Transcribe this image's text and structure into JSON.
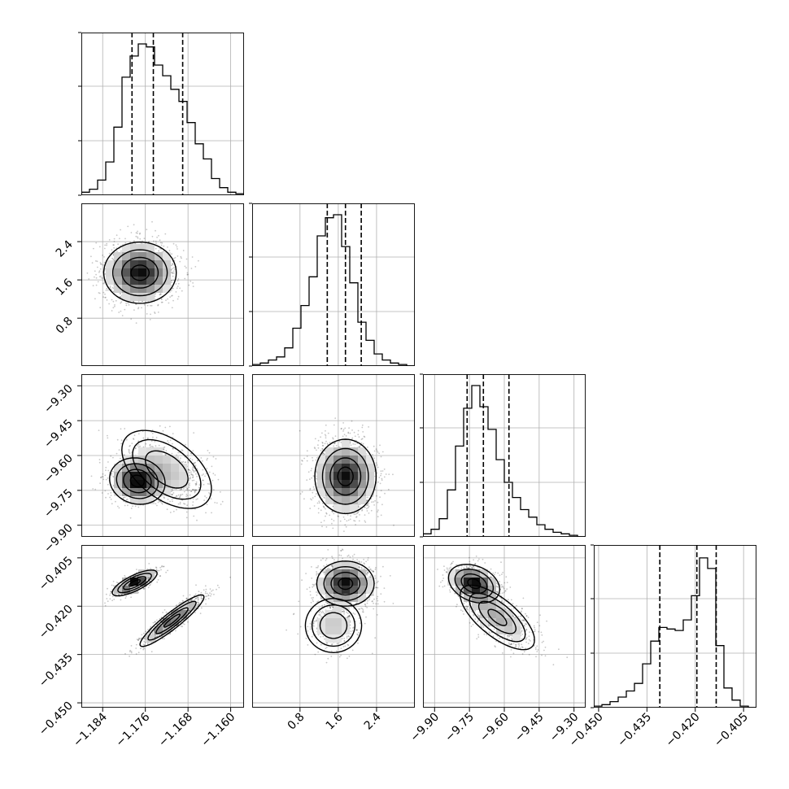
{
  "chart_data": {
    "type": "corner",
    "parameters": [
      {
        "ticks": [
          -1.184,
          -1.176,
          -1.168,
          -1.16
        ],
        "tick_labels": [
          "−1.184",
          "−1.176",
          "−1.168",
          "−1.160"
        ],
        "range": [
          -1.188,
          -1.1575
        ],
        "quantiles": [
          -1.1785,
          -1.1745,
          -1.169
        ]
      },
      {
        "ticks": [
          0.8,
          1.6,
          2.4
        ],
        "tick_labels": [
          "0.8",
          "1.6",
          "2.4"
        ],
        "range": [
          -0.2,
          3.2
        ],
        "quantiles": [
          1.37,
          1.75,
          2.08
        ]
      },
      {
        "ticks": [
          -9.9,
          -9.75,
          -9.6,
          -9.45,
          -9.3
        ],
        "tick_labels": [
          "−9.90",
          "−9.75",
          "−9.60",
          "−9.45",
          "−9.30"
        ],
        "range": [
          -9.95,
          -9.25
        ],
        "quantiles": [
          -9.76,
          -9.69,
          -9.58
        ]
      },
      {
        "ticks": [
          -0.45,
          -0.435,
          -0.42,
          -0.405
        ],
        "tick_labels": [
          "−0.450",
          "−0.435",
          "−0.420",
          "−0.405"
        ],
        "range": [
          -0.4515,
          -0.401
        ],
        "quantiles": [
          -0.431,
          -0.4195,
          -0.4135
        ]
      }
    ],
    "histograms": [
      [
        0.02,
        0.04,
        0.1,
        0.22,
        0.45,
        0.78,
        0.92,
        1.0,
        0.98,
        0.86,
        0.79,
        0.7,
        0.62,
        0.48,
        0.34,
        0.24,
        0.11,
        0.05,
        0.02,
        0.01
      ],
      [
        0.01,
        0.02,
        0.04,
        0.06,
        0.12,
        0.25,
        0.4,
        0.59,
        0.86,
        0.98,
        1.0,
        0.79,
        0.55,
        0.29,
        0.17,
        0.08,
        0.04,
        0.02,
        0.01,
        0.0
      ],
      [
        0.02,
        0.05,
        0.12,
        0.31,
        0.6,
        0.85,
        1.0,
        0.86,
        0.71,
        0.51,
        0.36,
        0.26,
        0.18,
        0.13,
        0.08,
        0.05,
        0.03,
        0.02,
        0.01,
        0.0
      ],
      [
        0.01,
        0.02,
        0.04,
        0.07,
        0.11,
        0.16,
        0.29,
        0.44,
        0.53,
        0.52,
        0.51,
        0.58,
        0.74,
        0.99,
        0.92,
        0.41,
        0.13,
        0.05,
        0.01,
        0.0
      ]
    ],
    "samples": [
      {
        "row": 1,
        "col": 0,
        "clusters": [
          {
            "mx": -1.177,
            "my": 1.75,
            "sx": 0.0034,
            "sy": 0.32,
            "rho": 0.0,
            "w": 1.0
          }
        ]
      },
      {
        "row": 2,
        "col": 0,
        "clusters": [
          {
            "mx": -1.1775,
            "my": -9.71,
            "sx": 0.0026,
            "sy": 0.05,
            "rho": -0.1,
            "w": 0.6
          },
          {
            "mx": -1.172,
            "my": -9.66,
            "sx": 0.004,
            "sy": 0.08,
            "rho": -0.5,
            "w": 0.4
          }
        ]
      },
      {
        "row": 2,
        "col": 1,
        "clusters": [
          {
            "mx": 1.75,
            "my": -9.69,
            "sx": 0.32,
            "sy": 0.08,
            "rho": 0.0,
            "w": 1.0
          }
        ]
      },
      {
        "row": 3,
        "col": 0,
        "clusters": [
          {
            "mx": -1.178,
            "my": -0.4128,
            "sx": 0.0021,
            "sy": 0.002,
            "rho": 0.75,
            "w": 0.45
          },
          {
            "mx": -1.171,
            "my": -0.4245,
            "sx": 0.003,
            "sy": 0.004,
            "rho": 0.92,
            "w": 0.55
          }
        ]
      },
      {
        "row": 3,
        "col": 1,
        "clusters": [
          {
            "mx": 1.75,
            "my": -0.413,
            "sx": 0.3,
            "sy": 0.0035,
            "rho": 0.0,
            "w": 0.75
          },
          {
            "mx": 1.5,
            "my": -0.426,
            "sx": 0.28,
            "sy": 0.004,
            "rho": 0.0,
            "w": 0.25
          }
        ]
      },
      {
        "row": 3,
        "col": 2,
        "clusters": [
          {
            "mx": -9.73,
            "my": -0.413,
            "sx": 0.055,
            "sy": 0.003,
            "rho": -0.3,
            "w": 0.55
          },
          {
            "mx": -9.63,
            "my": -0.4235,
            "sx": 0.08,
            "sy": 0.005,
            "rho": -0.7,
            "w": 0.45
          }
        ]
      }
    ]
  }
}
